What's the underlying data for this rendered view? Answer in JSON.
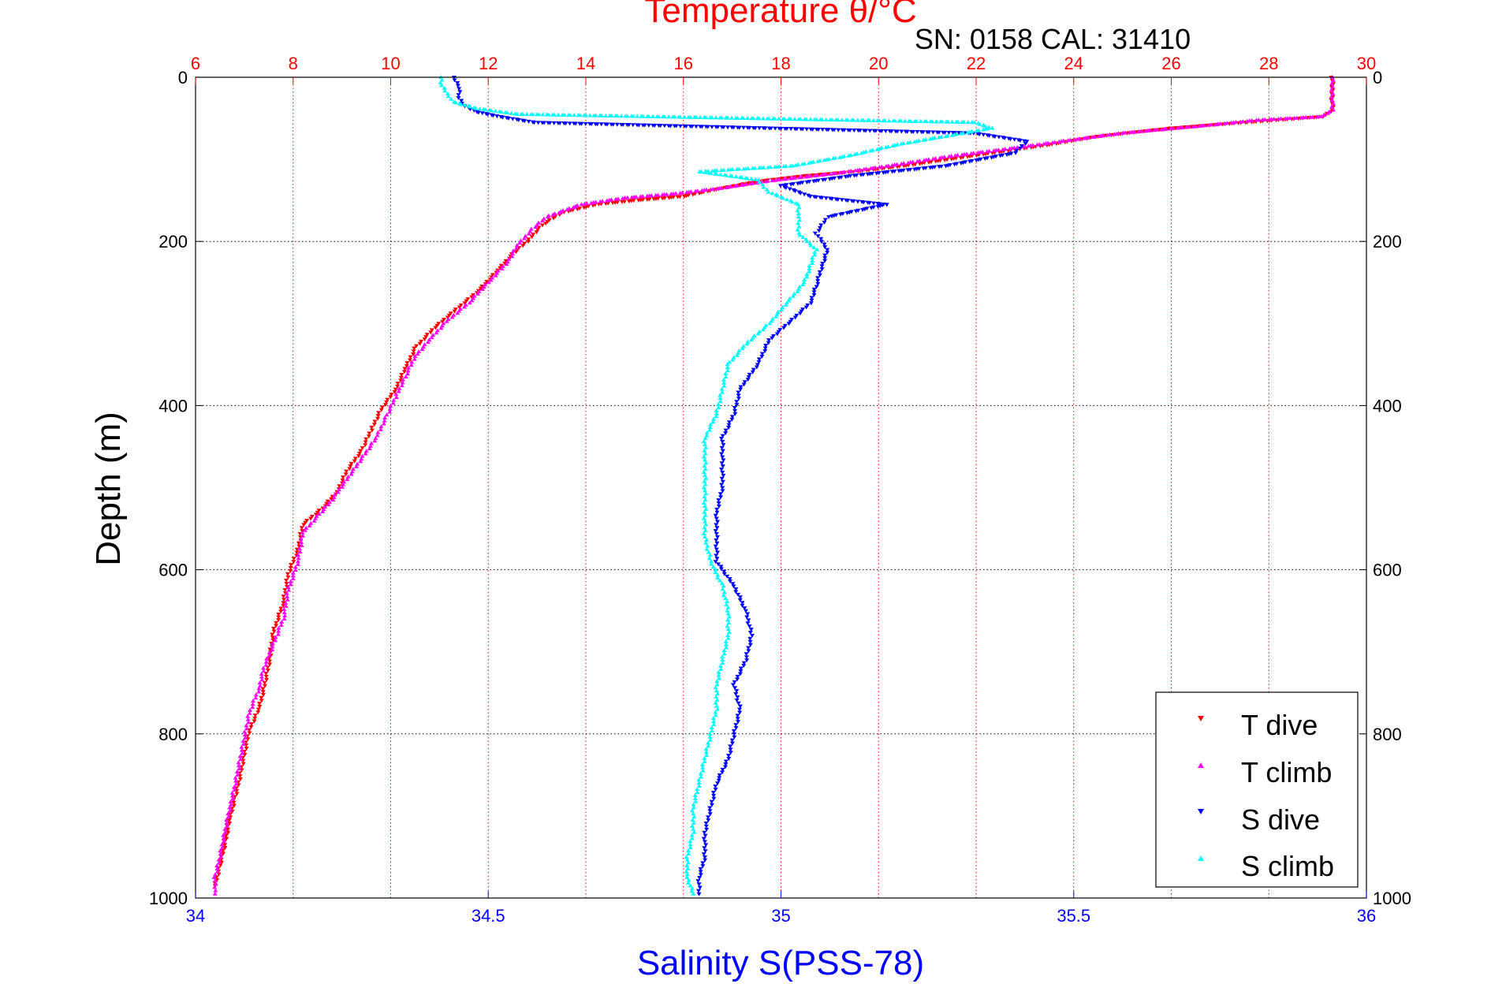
{
  "chart_data": {
    "type": "scatter",
    "title": "Temperature θ/°C",
    "subtitle": "SN: 0158  CAL: 31410",
    "ylabel": "Depth (m)",
    "xlabel_bottom": "Salinity S(PSS-78)",
    "ylim": [
      0,
      1000
    ],
    "y_reversed": true,
    "y_ticks": [
      "0",
      "200",
      "400",
      "600",
      "800",
      "1000"
    ],
    "temperature_axis": {
      "position": "top",
      "range": [
        6,
        30
      ],
      "ticks": [
        "6",
        "8",
        "10",
        "12",
        "14",
        "16",
        "18",
        "20",
        "22",
        "24",
        "26",
        "28",
        "30"
      ],
      "color": "#ff0000"
    },
    "salinity_axis": {
      "position": "bottom",
      "range": [
        34,
        36
      ],
      "ticks": [
        "34",
        "34.5",
        "35",
        "35.5",
        "36"
      ],
      "color": "#0000ff"
    },
    "grid": true,
    "legend_placement": "bottom-right",
    "series": [
      {
        "name": "T dive",
        "axis": "temperature",
        "color": "#ff0000",
        "marker": "triangle-down",
        "points": [
          [
            29.3,
            0
          ],
          [
            29.3,
            20
          ],
          [
            29.3,
            40
          ],
          [
            29.1,
            48
          ],
          [
            27.5,
            55
          ],
          [
            26.0,
            62
          ],
          [
            24.5,
            72
          ],
          [
            23.5,
            82
          ],
          [
            22.0,
            95
          ],
          [
            20.5,
            108
          ],
          [
            19.5,
            115
          ],
          [
            18.5,
            120
          ],
          [
            17.5,
            127
          ],
          [
            16.8,
            135
          ],
          [
            16.0,
            145
          ],
          [
            15.0,
            150
          ],
          [
            14.2,
            155
          ],
          [
            13.5,
            165
          ],
          [
            13.1,
            180
          ],
          [
            12.8,
            200
          ],
          [
            12.5,
            215
          ],
          [
            12.2,
            235
          ],
          [
            11.8,
            260
          ],
          [
            11.3,
            285
          ],
          [
            10.9,
            305
          ],
          [
            10.5,
            330
          ],
          [
            10.3,
            355
          ],
          [
            10.1,
            380
          ],
          [
            9.8,
            405
          ],
          [
            9.6,
            430
          ],
          [
            9.4,
            455
          ],
          [
            9.1,
            480
          ],
          [
            8.9,
            505
          ],
          [
            8.6,
            525
          ],
          [
            8.2,
            545
          ],
          [
            8.1,
            575
          ],
          [
            7.9,
            605
          ],
          [
            7.8,
            640
          ],
          [
            7.6,
            675
          ],
          [
            7.5,
            715
          ],
          [
            7.4,
            745
          ],
          [
            7.3,
            770
          ],
          [
            7.1,
            795
          ],
          [
            7.0,
            825
          ],
          [
            6.9,
            855
          ],
          [
            6.8,
            880
          ],
          [
            6.7,
            905
          ],
          [
            6.6,
            935
          ],
          [
            6.5,
            960
          ],
          [
            6.4,
            985
          ]
        ]
      },
      {
        "name": "T climb",
        "axis": "temperature",
        "color": "#ff00ff",
        "marker": "triangle-up",
        "points": [
          [
            29.3,
            0
          ],
          [
            29.3,
            20
          ],
          [
            29.3,
            40
          ],
          [
            29.1,
            48
          ],
          [
            27.8,
            52
          ],
          [
            26.5,
            60
          ],
          [
            25.0,
            68
          ],
          [
            24.0,
            76
          ],
          [
            22.8,
            86
          ],
          [
            21.5,
            96
          ],
          [
            20.2,
            108
          ],
          [
            19.0,
            118
          ],
          [
            17.8,
            126
          ],
          [
            16.8,
            135
          ],
          [
            15.8,
            142
          ],
          [
            14.8,
            147
          ],
          [
            13.9,
            155
          ],
          [
            13.2,
            170
          ],
          [
            12.9,
            185
          ],
          [
            12.6,
            205
          ],
          [
            12.4,
            225
          ],
          [
            12.0,
            250
          ],
          [
            11.6,
            275
          ],
          [
            11.1,
            300
          ],
          [
            10.8,
            320
          ],
          [
            10.5,
            340
          ],
          [
            10.3,
            365
          ],
          [
            10.1,
            390
          ],
          [
            9.9,
            415
          ],
          [
            9.7,
            440
          ],
          [
            9.4,
            465
          ],
          [
            9.1,
            490
          ],
          [
            8.8,
            515
          ],
          [
            8.5,
            535
          ],
          [
            8.2,
            555
          ],
          [
            8.1,
            590
          ],
          [
            7.9,
            625
          ],
          [
            7.8,
            660
          ],
          [
            7.6,
            690
          ],
          [
            7.4,
            720
          ],
          [
            7.3,
            745
          ],
          [
            7.1,
            775
          ],
          [
            7.0,
            805
          ],
          [
            6.9,
            835
          ],
          [
            6.8,
            865
          ],
          [
            6.7,
            890
          ],
          [
            6.6,
            920
          ],
          [
            6.5,
            950
          ],
          [
            6.4,
            975
          ],
          [
            6.4,
            995
          ]
        ]
      },
      {
        "name": "S dive",
        "axis": "salinity",
        "color": "#0000ff",
        "marker": "triangle-down",
        "points": [
          [
            34.44,
            0
          ],
          [
            34.45,
            10
          ],
          [
            34.45,
            25
          ],
          [
            34.46,
            35
          ],
          [
            34.48,
            42
          ],
          [
            34.52,
            48
          ],
          [
            34.58,
            55
          ],
          [
            35.33,
            68
          ],
          [
            35.42,
            78
          ],
          [
            35.4,
            92
          ],
          [
            35.28,
            108
          ],
          [
            35.12,
            120
          ],
          [
            35.0,
            132
          ],
          [
            35.05,
            145
          ],
          [
            35.18,
            155
          ],
          [
            35.08,
            170
          ],
          [
            35.06,
            190
          ],
          [
            35.08,
            210
          ],
          [
            35.07,
            230
          ],
          [
            35.06,
            255
          ],
          [
            35.05,
            275
          ],
          [
            35.02,
            295
          ],
          [
            34.98,
            320
          ],
          [
            34.96,
            350
          ],
          [
            34.93,
            380
          ],
          [
            34.92,
            410
          ],
          [
            34.9,
            440
          ],
          [
            34.9,
            470
          ],
          [
            34.9,
            500
          ],
          [
            34.89,
            530
          ],
          [
            34.89,
            560
          ],
          [
            34.89,
            590
          ],
          [
            34.92,
            620
          ],
          [
            34.94,
            650
          ],
          [
            34.95,
            680
          ],
          [
            34.94,
            710
          ],
          [
            34.92,
            740
          ],
          [
            34.93,
            770
          ],
          [
            34.92,
            800
          ],
          [
            34.91,
            830
          ],
          [
            34.89,
            860
          ],
          [
            34.88,
            890
          ],
          [
            34.87,
            920
          ],
          [
            34.87,
            950
          ],
          [
            34.86,
            975
          ],
          [
            34.86,
            995
          ]
        ]
      },
      {
        "name": "S climb",
        "axis": "salinity",
        "color": "#00ffff",
        "marker": "triangle-up",
        "points": [
          [
            34.42,
            0
          ],
          [
            34.42,
            10
          ],
          [
            34.43,
            20
          ],
          [
            34.44,
            30
          ],
          [
            34.48,
            38
          ],
          [
            34.55,
            45
          ],
          [
            35.33,
            55
          ],
          [
            35.36,
            62
          ],
          [
            35.28,
            72
          ],
          [
            35.2,
            82
          ],
          [
            35.12,
            95
          ],
          [
            35.02,
            108
          ],
          [
            34.86,
            115
          ],
          [
            34.96,
            125
          ],
          [
            34.98,
            140
          ],
          [
            35.03,
            155
          ],
          [
            35.03,
            170
          ],
          [
            35.03,
            190
          ],
          [
            35.06,
            210
          ],
          [
            35.05,
            230
          ],
          [
            35.04,
            250
          ],
          [
            35.01,
            275
          ],
          [
            34.98,
            300
          ],
          [
            34.94,
            325
          ],
          [
            34.91,
            350
          ],
          [
            34.9,
            380
          ],
          [
            34.89,
            410
          ],
          [
            34.87,
            440
          ],
          [
            34.87,
            470
          ],
          [
            34.87,
            500
          ],
          [
            34.87,
            530
          ],
          [
            34.87,
            560
          ],
          [
            34.88,
            590
          ],
          [
            34.9,
            620
          ],
          [
            34.91,
            650
          ],
          [
            34.91,
            680
          ],
          [
            34.9,
            710
          ],
          [
            34.89,
            740
          ],
          [
            34.89,
            770
          ],
          [
            34.88,
            800
          ],
          [
            34.87,
            830
          ],
          [
            34.86,
            860
          ],
          [
            34.85,
            890
          ],
          [
            34.85,
            920
          ],
          [
            34.84,
            950
          ],
          [
            34.84,
            975
          ],
          [
            34.85,
            995
          ]
        ]
      }
    ]
  }
}
